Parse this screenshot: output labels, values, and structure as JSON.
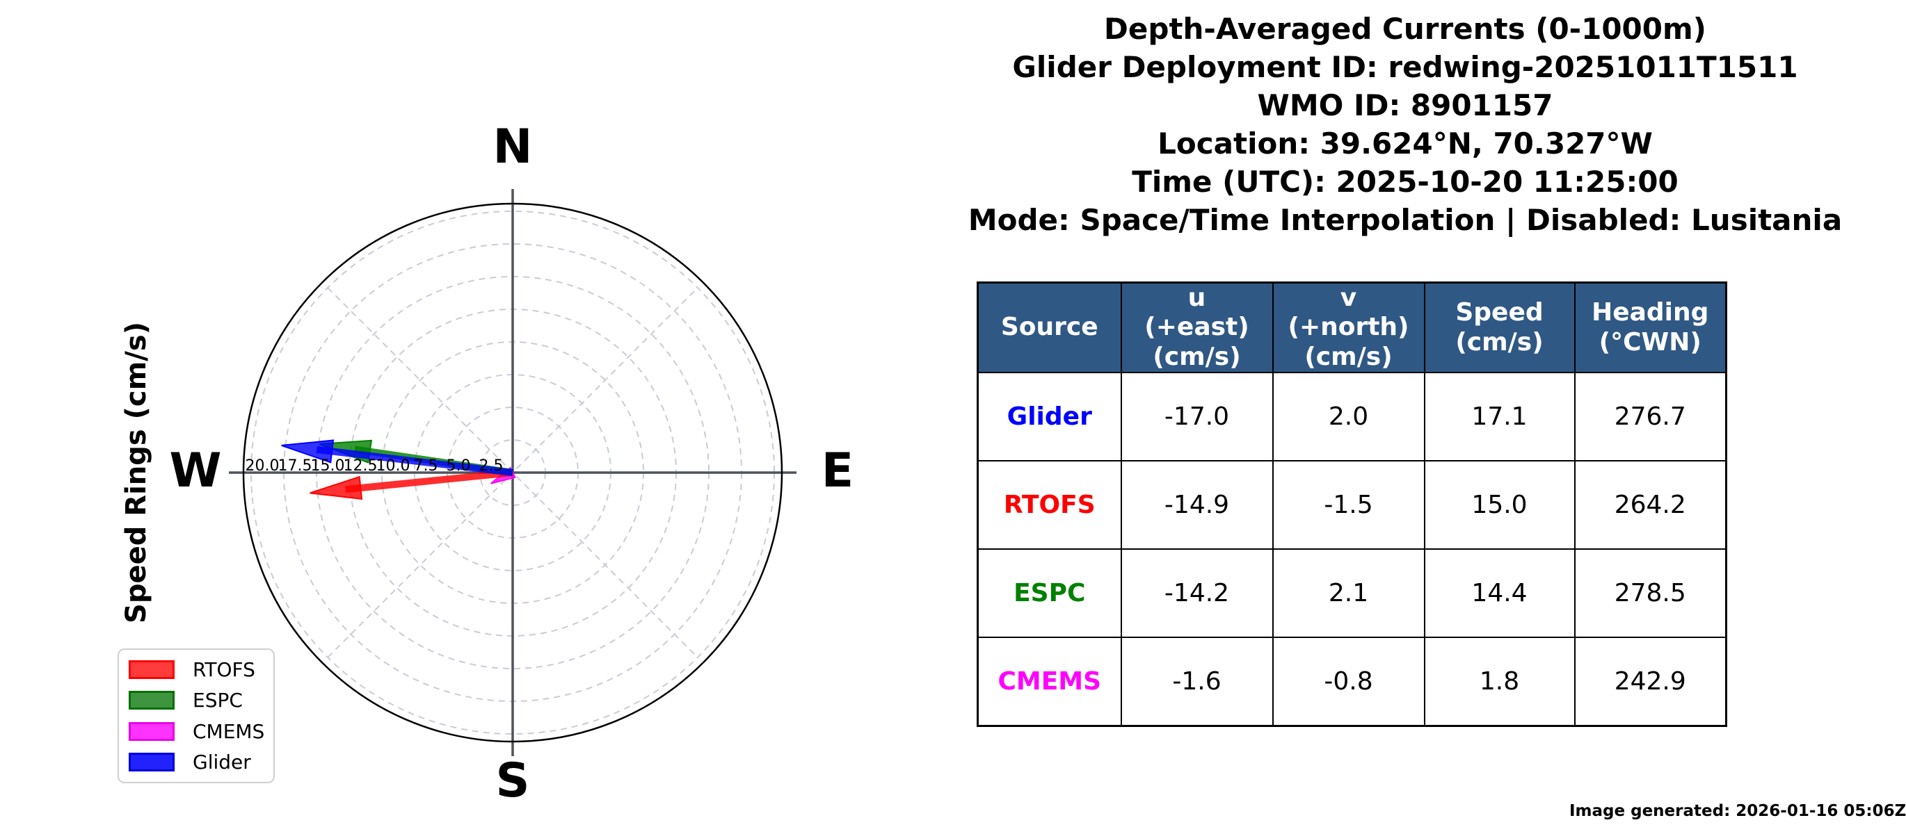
{
  "header": {
    "title": "Depth-Averaged Currents (0-1000m)",
    "deployment_line": "Glider Deployment ID: redwing-20251011T1511",
    "wmo_line": "WMO ID: 8901157",
    "location_line": "Location: 39.624°N, 70.327°W",
    "time_line": "Time (UTC): 2025-10-20 11:25:00",
    "mode_line": "Mode: Space/Time Interpolation | Disabled: Lusitania"
  },
  "plot": {
    "radial_axis_label": "Speed Rings (cm/s)",
    "compass": {
      "north": "N",
      "east": "E",
      "south": "S",
      "west": "W"
    }
  },
  "legend": {
    "items": [
      {
        "label": "RTOFS",
        "edge": "#ff0000",
        "fill": "#ff3b3b"
      },
      {
        "label": "ESPC",
        "edge": "#007000",
        "fill": "#3f953f"
      },
      {
        "label": "CMEMS",
        "edge": "#e800e8",
        "fill": "#ff33ff"
      },
      {
        "label": "Glider",
        "edge": "#0000dd",
        "fill": "#2222ff"
      }
    ]
  },
  "chart_data": {
    "type": "scatter",
    "subtype": "polar_quiver_compass",
    "title": "Depth-Averaged Currents (0-1000m)",
    "radial_label": "Speed Rings (cm/s)",
    "compass_labels": [
      "N",
      "E",
      "S",
      "W"
    ],
    "ring_values_cms": [
      2.5,
      5.0,
      7.5,
      10.0,
      12.5,
      15.0,
      17.5,
      20.0
    ],
    "rmax_cms": 20.0,
    "grid": true,
    "legend_position": "lower left",
    "draw_order": [
      "CMEMS",
      "RTOFS",
      "ESPC",
      "Glider"
    ],
    "series": [
      {
        "name": "RTOFS",
        "u": -14.9,
        "v": -1.5,
        "speed": 15.0,
        "heading_cwn": 264.2,
        "color": "#ff0000"
      },
      {
        "name": "ESPC",
        "u": -14.2,
        "v": 2.1,
        "speed": 14.4,
        "heading_cwn": 278.5,
        "color": "#008000"
      },
      {
        "name": "CMEMS",
        "u": -1.6,
        "v": -0.8,
        "speed": 1.8,
        "heading_cwn": 242.9,
        "color": "#ff00ff"
      },
      {
        "name": "Glider",
        "u": -17.0,
        "v": 2.0,
        "speed": 17.1,
        "heading_cwn": 276.7,
        "color": "#0000ff"
      }
    ]
  },
  "table": {
    "header_bg": "#2f5884",
    "headers": [
      "Source",
      "u\n(+east)\n(cm/s)",
      "v\n(+north)\n(cm/s)",
      "Speed\n(cm/s)",
      "Heading\n(°CWN)"
    ],
    "rows": [
      {
        "source": "Glider",
        "color": "#0000ff",
        "u": "-17.0",
        "v": "2.0",
        "speed": "17.1",
        "heading": "276.7"
      },
      {
        "source": "RTOFS",
        "color": "#ff0000",
        "u": "-14.9",
        "v": "-1.5",
        "speed": "15.0",
        "heading": "264.2"
      },
      {
        "source": "ESPC",
        "color": "#008000",
        "u": "-14.2",
        "v": "2.1",
        "speed": "14.4",
        "heading": "278.5"
      },
      {
        "source": "CMEMS",
        "color": "#ff00ff",
        "u": "-1.6",
        "v": "-0.8",
        "speed": "1.8",
        "heading": "242.9"
      }
    ]
  },
  "footer": {
    "generated": "Image generated: 2026-01-16 05:06Z"
  }
}
